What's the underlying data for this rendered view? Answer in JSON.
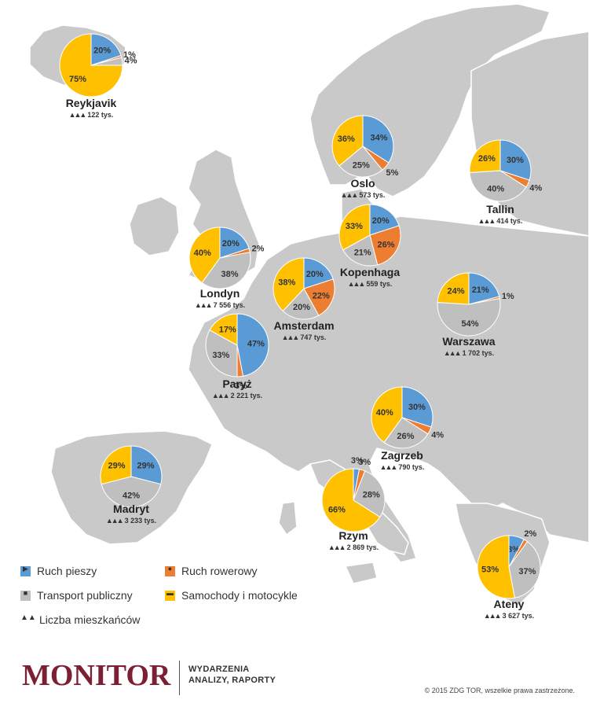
{
  "colors": {
    "pedestrian": "#5b9bd5",
    "cycling": "#ed7d31",
    "public_transport": "#bfbfbf",
    "cars": "#ffc000",
    "land": "#c9c9c9",
    "sea": "#ffffff",
    "brand": "#7b1f35"
  },
  "legend": {
    "pedestrian": "Ruch pieszy",
    "cycling": "Ruch rowerowy",
    "public_transport": "Transport publiczny",
    "cars": "Samochody i motocykle",
    "population": "Liczba mieszkańców"
  },
  "chart_data": {
    "type": "pie",
    "categories": [
      "Ruch pieszy",
      "Ruch rowerowy",
      "Transport publiczny",
      "Samochody i motocykle"
    ],
    "cities": [
      {
        "name": "Reykjavik",
        "population": "122 tys.",
        "values": [
          20,
          1,
          4,
          75
        ]
      },
      {
        "name": "Oslo",
        "population": "573 tys.",
        "values": [
          34,
          5,
          25,
          36
        ]
      },
      {
        "name": "Tallin",
        "population": "414 tys.",
        "values": [
          30,
          4,
          40,
          26
        ]
      },
      {
        "name": "Kopenhaga",
        "population": "559 tys.",
        "values": [
          20,
          26,
          21,
          33
        ]
      },
      {
        "name": "Londyn",
        "population": "7 556 tys.",
        "values": [
          20,
          2,
          38,
          40
        ]
      },
      {
        "name": "Amsterdam",
        "population": "747 tys.",
        "values": [
          20,
          22,
          20,
          38
        ]
      },
      {
        "name": "Warszawa",
        "population": "1 702 tys.",
        "values": [
          21,
          1,
          54,
          24
        ]
      },
      {
        "name": "Paryż",
        "population": "2 221 tys.",
        "values": [
          47,
          3,
          33,
          17
        ]
      },
      {
        "name": "Zagrzeb",
        "population": "790 tys.",
        "values": [
          30,
          4,
          26,
          40
        ]
      },
      {
        "name": "Madryt",
        "population": "3 233 tys.",
        "values": [
          29,
          0,
          42,
          29
        ]
      },
      {
        "name": "Rzym",
        "population": "2 869 tys.",
        "values": [
          3,
          3,
          28,
          66
        ]
      },
      {
        "name": "Ateny",
        "population": "3 627 tys.",
        "values": [
          8,
          2,
          37,
          53
        ]
      }
    ]
  },
  "footer": {
    "brand": "MONITOR",
    "tagline_1": "WYDARZENIA",
    "tagline_2": "ANALIZY, RAPORTY",
    "copyright": "© 2015 ZDG TOR, wszelkie prawa zastrzeżone."
  }
}
